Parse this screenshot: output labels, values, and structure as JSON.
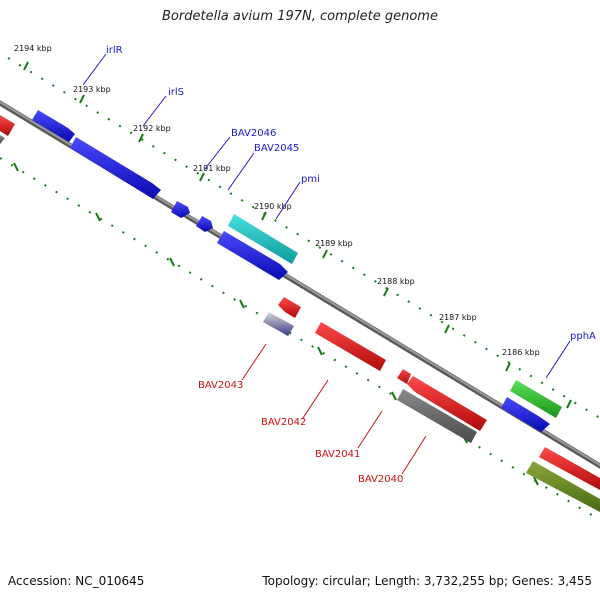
{
  "title": "Bordetella avium 197N, complete genome",
  "footer": {
    "accession": "Accession: NC_010645",
    "summary": "Topology: circular; Length: 3,732,255 bp; Genes: 3,455"
  },
  "kbp_ticks": [
    "2194 kbp",
    "2193 kbp",
    "2192 kbp",
    "2191 kbp",
    "2190 kbp",
    "2189 kbp",
    "2188 kbp",
    "2187 kbp",
    "2186 kbp"
  ],
  "labels": {
    "forward": [
      "irlR",
      "irlS",
      "BAV2046",
      "BAV2045",
      "pmi",
      "pphA"
    ],
    "reverse": [
      "BAV2043",
      "BAV2042",
      "BAV2041",
      "BAV2040"
    ]
  },
  "colors": {
    "blue": "#1a1aee",
    "red": "#ee1111",
    "cyan": "#22cccc",
    "green": "#33cc33",
    "olive": "#6b8e23",
    "gray": "#707070",
    "navy": "#4a4a99",
    "tick_green": "#1a7a1a",
    "backbone": "#808080"
  }
}
